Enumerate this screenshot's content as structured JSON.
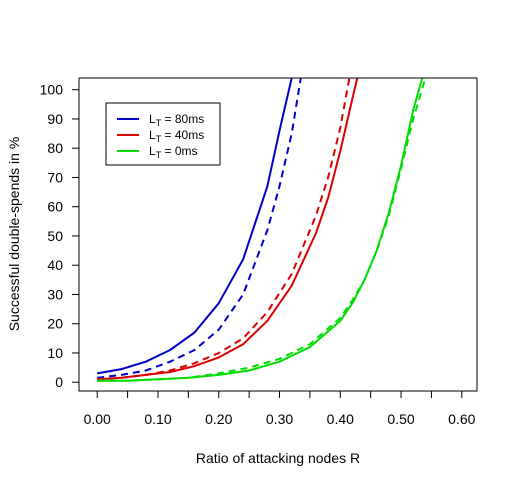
{
  "chart_data": {
    "type": "line",
    "title": "",
    "xlabel": "Ratio of attacking nodes R",
    "ylabel": "Successful double-spends in %",
    "xlim": [
      -0.03,
      0.625
    ],
    "ylim": [
      -3,
      104
    ],
    "xticks": [
      0.0,
      0.1,
      0.2,
      0.3,
      0.4,
      0.5,
      0.6
    ],
    "xtick_labels": [
      "0.00",
      "0.10",
      "0.20",
      "0.30",
      "0.40",
      "0.50",
      "0.60"
    ],
    "yticks": [
      0,
      10,
      20,
      30,
      40,
      50,
      60,
      70,
      80,
      90,
      100
    ],
    "ytick_labels": [
      "0",
      "10",
      "20",
      "30",
      "40",
      "50",
      "60",
      "70",
      "80",
      "90",
      "100"
    ],
    "grid": false,
    "legend_position": "top-left",
    "legend": [
      {
        "base": "L",
        "sub": "T",
        "rest": " = 80ms",
        "color": "#0000cc"
      },
      {
        "base": "L",
        "sub": "T",
        "rest": " = 40ms",
        "color": "#dd0000"
      },
      {
        "base": "L",
        "sub": "T",
        "rest": " = 0ms",
        "color": "#00dd00"
      }
    ],
    "series": [
      {
        "color": "#0000cc",
        "dash": "solid",
        "x": [
          0.0,
          0.04,
          0.08,
          0.12,
          0.16,
          0.2,
          0.24,
          0.28,
          0.3,
          0.32
        ],
        "y": [
          3,
          4.5,
          7,
          11,
          17,
          27,
          42,
          67,
          86,
          104
        ]
      },
      {
        "color": "#0000cc",
        "dash": "dashed",
        "x": [
          0.0,
          0.04,
          0.08,
          0.12,
          0.16,
          0.2,
          0.24,
          0.28,
          0.3,
          0.32,
          0.335
        ],
        "y": [
          1.5,
          2.5,
          4,
          7,
          11,
          18,
          30,
          52,
          67,
          85,
          104
        ]
      },
      {
        "color": "#dd0000",
        "dash": "solid",
        "x": [
          0.0,
          0.04,
          0.08,
          0.12,
          0.16,
          0.2,
          0.24,
          0.28,
          0.32,
          0.36,
          0.38,
          0.4,
          0.42,
          0.428
        ],
        "y": [
          1,
          1.5,
          2.5,
          3.5,
          5.5,
          8.5,
          13,
          21,
          33,
          51,
          63,
          79,
          97,
          104
        ]
      },
      {
        "color": "#dd0000",
        "dash": "dashed",
        "x": [
          0.0,
          0.04,
          0.08,
          0.12,
          0.16,
          0.2,
          0.24,
          0.28,
          0.32,
          0.36,
          0.38,
          0.4,
          0.415
        ],
        "y": [
          1,
          1.5,
          2.5,
          4,
          6.5,
          10,
          15,
          24,
          37,
          57,
          70,
          87,
          104
        ]
      },
      {
        "color": "#00dd00",
        "dash": "solid",
        "x": [
          0.0,
          0.05,
          0.1,
          0.15,
          0.2,
          0.25,
          0.3,
          0.35,
          0.4,
          0.42,
          0.44,
          0.46,
          0.48,
          0.5,
          0.52,
          0.535
        ],
        "y": [
          0.5,
          0.5,
          1,
          1.5,
          2.5,
          4,
          7,
          12,
          21,
          27,
          35,
          45,
          58,
          74,
          93,
          104
        ]
      },
      {
        "color": "#00dd00",
        "dash": "dashed",
        "x": [
          0.0,
          0.05,
          0.1,
          0.15,
          0.2,
          0.25,
          0.3,
          0.35,
          0.4,
          0.42,
          0.44,
          0.46,
          0.48,
          0.5,
          0.52,
          0.54
        ],
        "y": [
          0.5,
          0.5,
          1,
          1.5,
          3,
          5,
          8,
          13,
          22,
          28,
          35,
          45,
          57,
          73,
          90,
          104
        ]
      }
    ]
  }
}
